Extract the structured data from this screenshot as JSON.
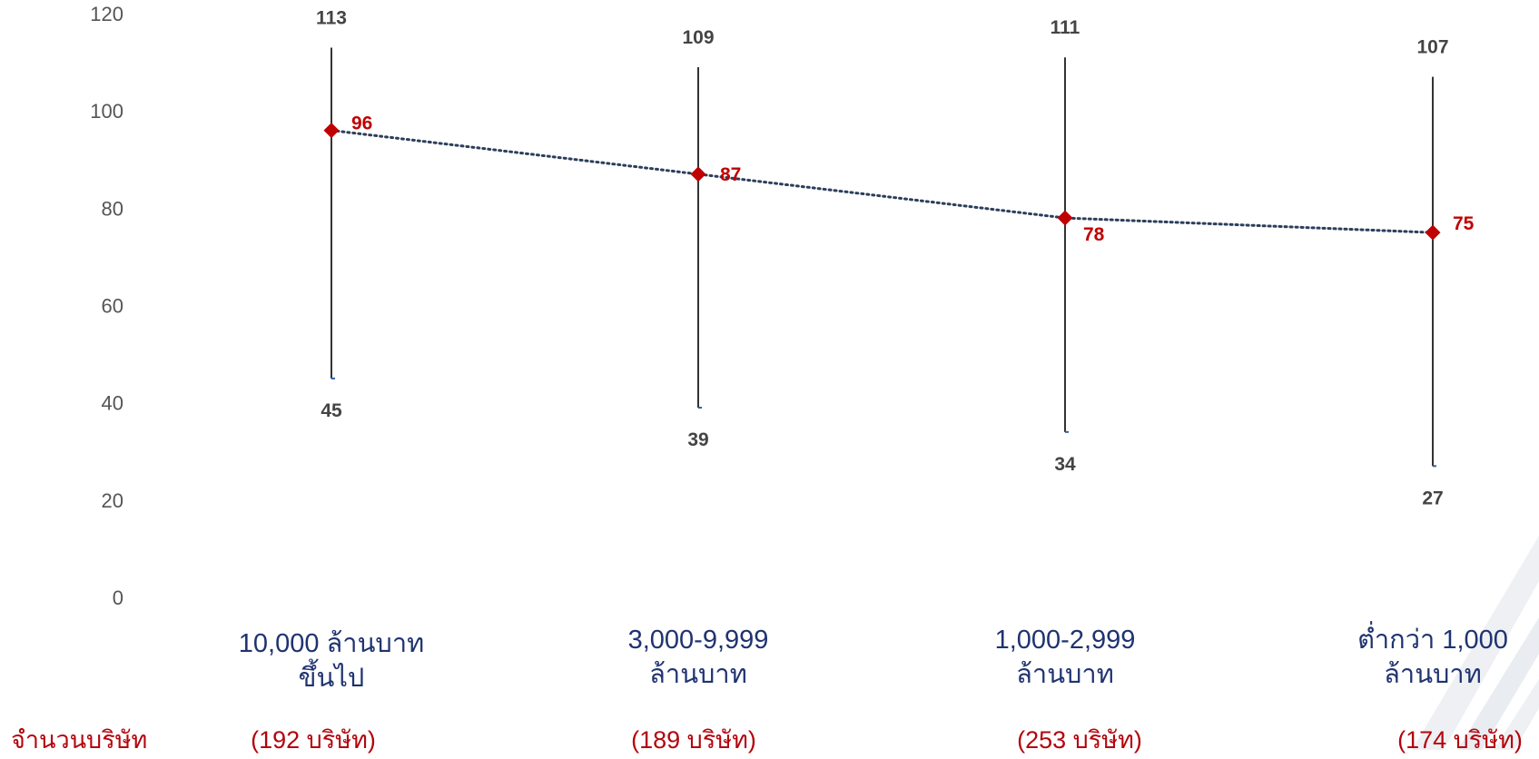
{
  "chart_data": {
    "type": "line",
    "ylim": [
      0,
      120
    ],
    "yticks": [
      0,
      20,
      40,
      60,
      80,
      100,
      120
    ],
    "categories": [
      "10,000 ล้านบาท ขึ้นไป",
      "3,000-9,999 ล้านบาท",
      "1,000-2,999 ล้านบาท",
      "ต่ำกว่า 1,000 ล้านบาท"
    ],
    "category_lines": [
      [
        "10,000 ล้านบาท",
        "ขึ้นไป"
      ],
      [
        "3,000-9,999",
        "ล้านบาท"
      ],
      [
        "1,000-2,999",
        "ล้านบาท"
      ],
      [
        "ต่ำกว่า 1,000",
        "ล้านบาท"
      ]
    ],
    "counts": [
      "(192 บริษัท)",
      "(189 บริษัท)",
      "(253 บริษัท)",
      "(174 บริษัท)"
    ],
    "counts_row_label": "จำนวนบริษัท",
    "series": [
      {
        "values": [
          113,
          109,
          111,
          107
        ]
      },
      {
        "values": [
          45,
          39,
          34,
          27
        ]
      },
      {
        "values": [
          96,
          87,
          78,
          75
        ]
      }
    ],
    "colors": {
      "range_line": "#333333",
      "range_label": "#444444",
      "average": "#c00000",
      "trend": "#2c3e5c",
      "category_text": "#1f3370",
      "count_text": "#b3050d",
      "axis_text": "#555555"
    },
    "grid": false,
    "legend": "none"
  }
}
